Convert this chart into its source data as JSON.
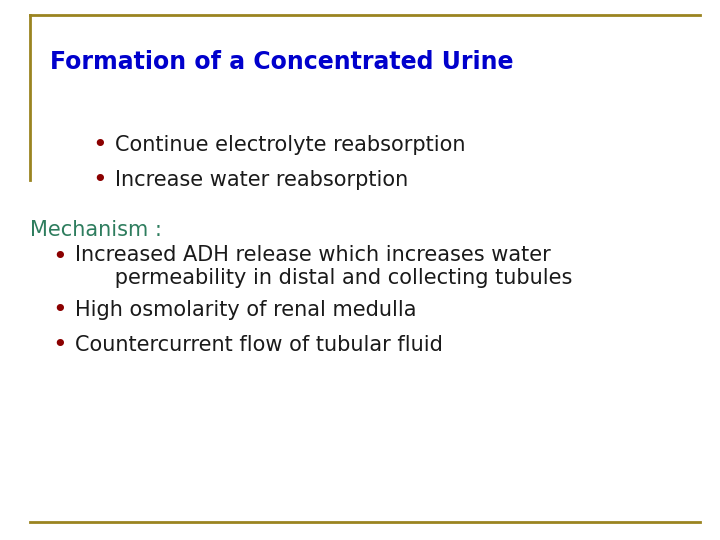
{
  "background_color": "#ffffff",
  "border_color": "#9a8420",
  "title": "Formation of a Concentrated Urine",
  "title_color": "#0000cc",
  "title_fontsize": 17,
  "bullet_color": "#8b0000",
  "bullet_text_color": "#1a1a1a",
  "bullet_fontsize": 15,
  "mechanism_label": "Mechanism :",
  "mechanism_color": "#2e7d5e",
  "mechanism_fontsize": 15,
  "bullets_top": [
    "Continue electrolyte reabsorption",
    "Increase water reabsorption"
  ],
  "bullets_bottom_line1a": "Increased ADH release which increases water",
  "bullets_bottom_line1b": "      permeability in distal and collecting tubules",
  "bullets_bottom_line2": "High osmolarity of renal medulla",
  "bullets_bottom_line3": "Countercurrent flow of tubular fluid"
}
